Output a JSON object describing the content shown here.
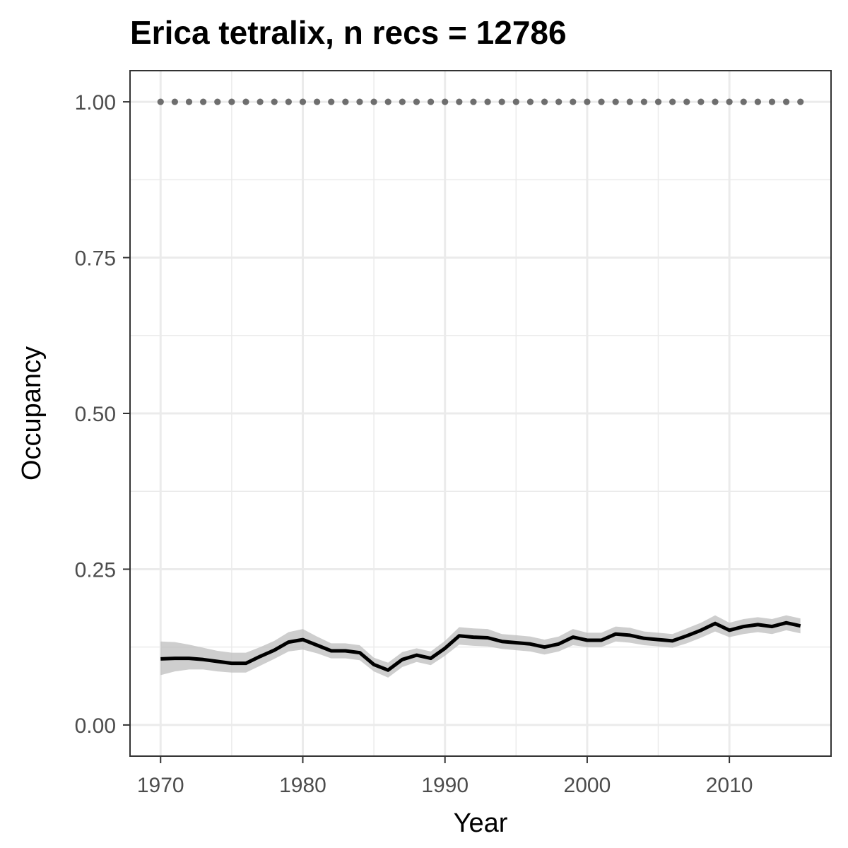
{
  "chart_data": {
    "type": "line",
    "title": "Erica tetralix, n recs = 12786",
    "xlabel": "Year",
    "ylabel": "Occupancy",
    "xlim": [
      1967.85,
      2017.15
    ],
    "ylim": [
      -0.05,
      1.05
    ],
    "x_ticks": [
      1970,
      1980,
      1990,
      2000,
      2010
    ],
    "x_tick_labels": [
      "1970",
      "1980",
      "1990",
      "2000",
      "2010"
    ],
    "y_ticks": [
      0,
      0.25,
      0.5,
      0.75,
      1.0
    ],
    "y_tick_labels": [
      "0.00",
      "0.25",
      "0.50",
      "0.75",
      "1.00"
    ],
    "grid": true,
    "colors": {
      "line": "#000000",
      "ribbon": "#bdbdbd",
      "points": "#6e6e6e"
    },
    "series": [
      {
        "kind": "line-with-ribbon",
        "x": [
          1970,
          1971,
          1972,
          1973,
          1974,
          1975,
          1976,
          1977,
          1978,
          1979,
          1980,
          1981,
          1982,
          1983,
          1984,
          1985,
          1986,
          1987,
          1988,
          1989,
          1990,
          1991,
          1992,
          1993,
          1994,
          1995,
          1996,
          1997,
          1998,
          1999,
          2000,
          2001,
          2002,
          2003,
          2004,
          2005,
          2006,
          2007,
          2008,
          2009,
          2010,
          2011,
          2012,
          2013,
          2014,
          2015
        ],
        "y": [
          0.106,
          0.107,
          0.107,
          0.105,
          0.102,
          0.099,
          0.099,
          0.11,
          0.12,
          0.133,
          0.137,
          0.128,
          0.119,
          0.119,
          0.116,
          0.097,
          0.088,
          0.105,
          0.112,
          0.107,
          0.123,
          0.143,
          0.141,
          0.14,
          0.134,
          0.132,
          0.13,
          0.125,
          0.13,
          0.141,
          0.136,
          0.136,
          0.146,
          0.144,
          0.139,
          0.137,
          0.135,
          0.143,
          0.152,
          0.163,
          0.152,
          0.158,
          0.161,
          0.158,
          0.164,
          0.159
        ],
        "lower": [
          0.08,
          0.086,
          0.089,
          0.089,
          0.086,
          0.084,
          0.084,
          0.095,
          0.106,
          0.118,
          0.121,
          0.115,
          0.107,
          0.107,
          0.104,
          0.086,
          0.076,
          0.093,
          0.101,
          0.096,
          0.111,
          0.129,
          0.127,
          0.126,
          0.122,
          0.12,
          0.118,
          0.113,
          0.118,
          0.128,
          0.125,
          0.125,
          0.134,
          0.132,
          0.128,
          0.126,
          0.124,
          0.131,
          0.14,
          0.15,
          0.141,
          0.146,
          0.149,
          0.146,
          0.152,
          0.147
        ],
        "upper": [
          0.134,
          0.133,
          0.129,
          0.124,
          0.119,
          0.116,
          0.116,
          0.125,
          0.135,
          0.149,
          0.154,
          0.142,
          0.131,
          0.131,
          0.128,
          0.108,
          0.1,
          0.117,
          0.123,
          0.118,
          0.135,
          0.157,
          0.155,
          0.154,
          0.146,
          0.144,
          0.142,
          0.137,
          0.142,
          0.154,
          0.148,
          0.148,
          0.158,
          0.156,
          0.15,
          0.148,
          0.146,
          0.155,
          0.164,
          0.176,
          0.164,
          0.17,
          0.173,
          0.17,
          0.176,
          0.171
        ]
      },
      {
        "kind": "points",
        "x": [
          1970,
          1971,
          1972,
          1973,
          1974,
          1975,
          1976,
          1977,
          1978,
          1979,
          1980,
          1981,
          1982,
          1983,
          1984,
          1985,
          1986,
          1987,
          1988,
          1989,
          1990,
          1991,
          1992,
          1993,
          1994,
          1995,
          1996,
          1997,
          1998,
          1999,
          2000,
          2001,
          2002,
          2003,
          2004,
          2005,
          2006,
          2007,
          2008,
          2009,
          2010,
          2011,
          2012,
          2013,
          2014,
          2015
        ],
        "y": [
          1,
          1,
          1,
          1,
          1,
          1,
          1,
          1,
          1,
          1,
          1,
          1,
          1,
          1,
          1,
          1,
          1,
          1,
          1,
          1,
          1,
          1,
          1,
          1,
          1,
          1,
          1,
          1,
          1,
          1,
          1,
          1,
          1,
          1,
          1,
          1,
          1,
          1,
          1,
          1,
          1,
          1,
          1,
          1,
          1,
          1
        ]
      }
    ]
  }
}
